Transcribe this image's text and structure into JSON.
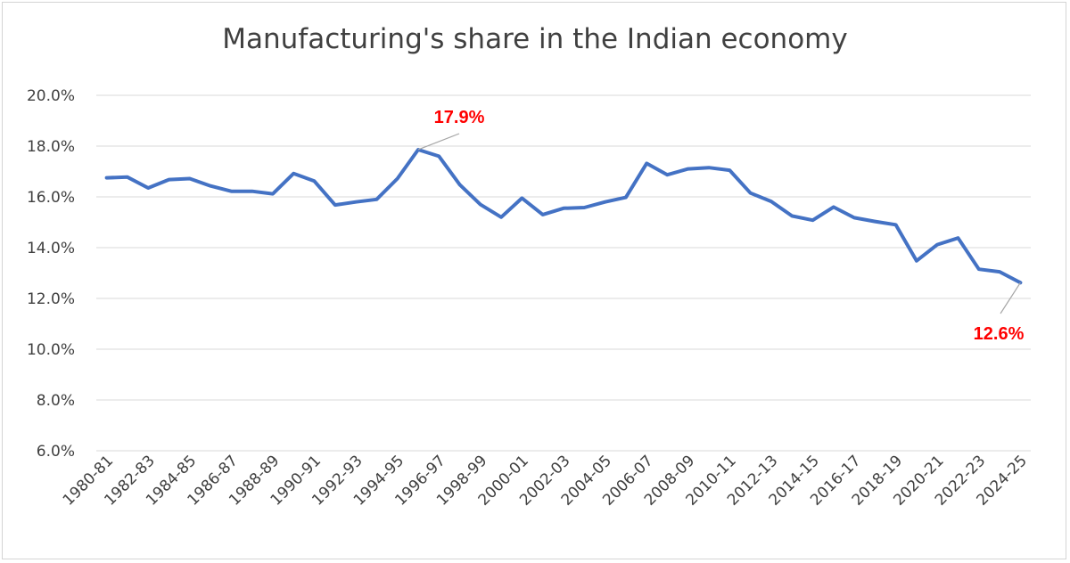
{
  "chart_data": {
    "type": "line",
    "title": "Manufacturing's share in the Indian economy",
    "xlabel": "",
    "ylabel": "",
    "ylim": [
      6,
      20
    ],
    "yticks": [
      "6.0%",
      "8.0%",
      "10.0%",
      "12.0%",
      "14.0%",
      "16.0%",
      "18.0%",
      "20.0%"
    ],
    "grid": true,
    "legend": "none",
    "line_color": "#4472c4",
    "x": [
      "1980-81",
      "1981-82",
      "1982-83",
      "1983-84",
      "1984-85",
      "1985-86",
      "1986-87",
      "1987-88",
      "1988-89",
      "1989-90",
      "1990-91",
      "1991-92",
      "1992-93",
      "1993-94",
      "1994-95",
      "1995-96",
      "1996-97",
      "1997-98",
      "1998-99",
      "1999-00",
      "2000-01",
      "2001-02",
      "2002-03",
      "2003-04",
      "2004-05",
      "2005-06",
      "2006-07",
      "2007-08",
      "2008-09",
      "2009-10",
      "2010-11",
      "2011-12",
      "2012-13",
      "2013-14",
      "2014-15",
      "2015-16",
      "2016-17",
      "2017-18",
      "2018-19",
      "2019-20",
      "2020-21",
      "2021-22",
      "2022-23",
      "2023-24",
      "2024-25"
    ],
    "x_tick_labels": [
      "1980-81",
      "1982-83",
      "1984-85",
      "1986-87",
      "1988-89",
      "1990-91",
      "1992-93",
      "1994-95",
      "1996-97",
      "1998-99",
      "2000-01",
      "2002-03",
      "2004-05",
      "2006-07",
      "2008-09",
      "2010-11",
      "2012-13",
      "2014-15",
      "2016-17",
      "2018-19",
      "2020-21",
      "2022-23",
      "2024-25"
    ],
    "series": [
      {
        "values": [
          16.75,
          16.78,
          16.35,
          16.68,
          16.72,
          16.43,
          16.22,
          16.22,
          16.12,
          16.92,
          16.62,
          15.68,
          15.8,
          15.9,
          16.72,
          17.86,
          17.6,
          16.48,
          15.7,
          15.2,
          15.95,
          15.3,
          15.55,
          15.58,
          15.8,
          15.98,
          17.32,
          16.87,
          17.1,
          17.15,
          17.05,
          16.15,
          15.82,
          15.25,
          15.08,
          15.6,
          15.18,
          15.03,
          14.9,
          13.48,
          14.12,
          14.38,
          13.15,
          13.05,
          12.62
        ]
      }
    ],
    "annotations": [
      {
        "text": "17.9%",
        "x": "1995-96",
        "y": 17.86
      },
      {
        "text": "12.6%",
        "x": "2024-25",
        "y": 12.62
      }
    ]
  }
}
